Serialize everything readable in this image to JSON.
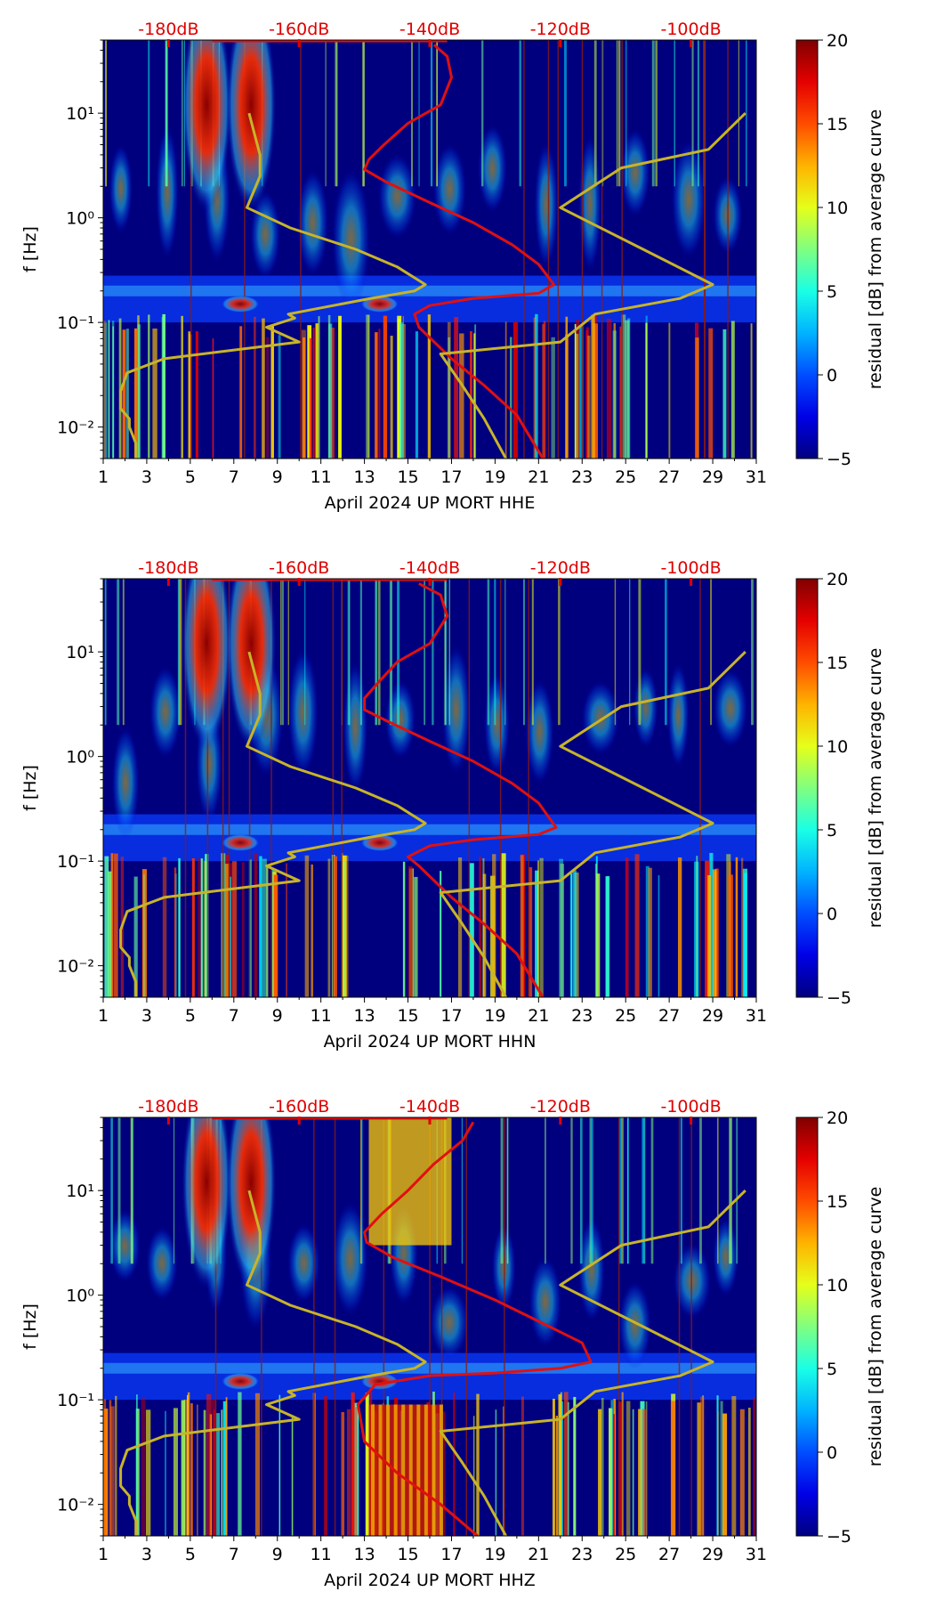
{
  "colors": {
    "background": "#00007f",
    "psd_curve": "#e01010",
    "reference_curve": "#c8b428",
    "db_scale": "#e00000",
    "colormap": "jet"
  },
  "chart_data": [
    {
      "type": "heatmap",
      "xlabel": "April 2024 UP MORT  HHE",
      "ylabel": "f [Hz]",
      "x_ticks": [
        "1",
        "3",
        "5",
        "7",
        "9",
        "11",
        "13",
        "15",
        "17",
        "19",
        "21",
        "23",
        "25",
        "27",
        "29",
        "31"
      ],
      "xlim": [
        1,
        31
      ],
      "ylim": [
        0.005,
        50
      ],
      "yscale": "log",
      "y_ticks": [
        {
          "value": 0.01,
          "label": "10⁻²"
        },
        {
          "value": 0.1,
          "label": "10⁻¹"
        },
        {
          "value": 1,
          "label": "10⁰"
        },
        {
          "value": 10,
          "label": "10¹"
        }
      ],
      "top_db_labels": [
        "-180dB",
        "-160dB",
        "-140dB",
        "-120dB",
        "-100dB"
      ],
      "top_db_positions_day": [
        4,
        10,
        16,
        22,
        28
      ],
      "colorbar": {
        "label": "residual [dB] from average curve",
        "range": [
          -5,
          20
        ],
        "ticks": [
          "−5",
          "0",
          "5",
          "10",
          "15",
          "20"
        ]
      },
      "series": [
        {
          "name": "",
          "kind": "psd",
          "x": [
            16.2,
            16.8,
            17.0,
            16.5,
            15.0,
            13.9,
            13.2,
            13.0,
            14.0,
            16.0,
            18.0,
            19.8,
            21.0,
            21.7,
            21.0,
            18.0,
            16.0,
            15.3,
            15.5,
            17.0,
            18.5,
            20.0,
            21.2
          ],
          "y": [
            45,
            35,
            22,
            12,
            8,
            5,
            3.6,
            2.9,
            2.2,
            1.4,
            0.9,
            0.55,
            0.36,
            0.23,
            0.19,
            0.17,
            0.145,
            0.12,
            0.09,
            0.045,
            0.025,
            0.013,
            0.005
          ]
        },
        {
          "name": "",
          "kind": "reference",
          "x": [
            7.7,
            8.2,
            8.2,
            7.6,
            9.6,
            12.6,
            14.5,
            15.8,
            15.3,
            13.3,
            9.5,
            9.8,
            8.5,
            10.0,
            3.8,
            2.1,
            1.8,
            1.8,
            2.2,
            2.2,
            2.5,
            2.5
          ],
          "y": [
            10,
            4,
            2.5,
            1.25,
            0.8,
            0.5,
            0.34,
            0.23,
            0.2,
            0.17,
            0.12,
            0.11,
            0.09,
            0.065,
            0.045,
            0.033,
            0.022,
            0.015,
            0.012,
            0.01,
            0.007,
            0.005
          ]
        },
        {
          "name": "",
          "kind": "reference",
          "x": [
            30.5,
            28.8,
            24.8,
            22.0,
            25.8,
            29.0,
            27.5,
            23.6,
            22.0,
            16.5,
            17.5,
            18.5,
            19.5
          ],
          "y": [
            10,
            4.5,
            3.0,
            1.25,
            0.5,
            0.23,
            0.17,
            0.12,
            0.065,
            0.05,
            0.025,
            0.012,
            0.005
          ]
        }
      ]
    },
    {
      "type": "heatmap",
      "xlabel": "April 2024 UP MORT  HHN",
      "ylabel": "f [Hz]",
      "x_ticks": [
        "1",
        "3",
        "5",
        "7",
        "9",
        "11",
        "13",
        "15",
        "17",
        "19",
        "21",
        "23",
        "25",
        "27",
        "29",
        "31"
      ],
      "xlim": [
        1,
        31
      ],
      "ylim": [
        0.005,
        50
      ],
      "yscale": "log",
      "y_ticks": [
        {
          "value": 0.01,
          "label": "10⁻²"
        },
        {
          "value": 0.1,
          "label": "10⁻¹"
        },
        {
          "value": 1,
          "label": "10⁰"
        },
        {
          "value": 10,
          "label": "10¹"
        }
      ],
      "top_db_labels": [
        "-180dB",
        "-160dB",
        "-140dB",
        "-120dB",
        "-100dB"
      ],
      "top_db_positions_day": [
        4,
        10,
        16,
        22,
        28
      ],
      "colorbar": {
        "label": "residual [dB] from average curve",
        "range": [
          -5,
          20
        ],
        "ticks": [
          "−5",
          "0",
          "5",
          "10",
          "15",
          "20"
        ]
      },
      "series": [
        {
          "name": "",
          "kind": "psd",
          "x": [
            15.5,
            16.5,
            16.8,
            16.0,
            14.5,
            13.6,
            13.0,
            13.0,
            14.0,
            16.0,
            18.0,
            19.8,
            21.0,
            21.8,
            21.0,
            18.0,
            16.0,
            15.0,
            15.5,
            17.0,
            18.5,
            20.0,
            21.2
          ],
          "y": [
            45,
            35,
            22,
            12,
            8,
            5,
            3.6,
            2.8,
            2.2,
            1.4,
            0.9,
            0.55,
            0.36,
            0.21,
            0.18,
            0.16,
            0.14,
            0.11,
            0.09,
            0.045,
            0.025,
            0.013,
            0.005
          ]
        },
        {
          "name": "",
          "kind": "reference",
          "x": [
            7.7,
            8.2,
            8.2,
            7.6,
            9.6,
            12.6,
            14.5,
            15.8,
            15.3,
            13.3,
            9.5,
            9.8,
            8.5,
            10.0,
            3.8,
            2.1,
            1.8,
            1.8,
            2.2,
            2.2,
            2.5,
            2.5
          ],
          "y": [
            10,
            4,
            2.5,
            1.25,
            0.8,
            0.5,
            0.34,
            0.23,
            0.2,
            0.17,
            0.12,
            0.11,
            0.09,
            0.065,
            0.045,
            0.033,
            0.022,
            0.015,
            0.012,
            0.01,
            0.007,
            0.005
          ]
        },
        {
          "name": "",
          "kind": "reference",
          "x": [
            30.5,
            28.8,
            24.8,
            22.0,
            25.8,
            29.0,
            27.5,
            23.6,
            22.0,
            16.5,
            17.5,
            18.5,
            19.5
          ],
          "y": [
            10,
            4.5,
            3.0,
            1.25,
            0.5,
            0.23,
            0.17,
            0.12,
            0.065,
            0.05,
            0.025,
            0.012,
            0.005
          ]
        }
      ]
    },
    {
      "type": "heatmap",
      "xlabel": "April 2024 UP MORT  HHZ",
      "ylabel": "f [Hz]",
      "x_ticks": [
        "1",
        "3",
        "5",
        "7",
        "9",
        "11",
        "13",
        "15",
        "17",
        "19",
        "21",
        "23",
        "25",
        "27",
        "29",
        "31"
      ],
      "xlim": [
        1,
        31
      ],
      "ylim": [
        0.005,
        50
      ],
      "yscale": "log",
      "y_ticks": [
        {
          "value": 0.01,
          "label": "10⁻²"
        },
        {
          "value": 0.1,
          "label": "10⁻¹"
        },
        {
          "value": 1,
          "label": "10⁰"
        },
        {
          "value": 10,
          "label": "10¹"
        }
      ],
      "top_db_labels": [
        "-180dB",
        "-160dB",
        "-140dB",
        "-120dB",
        "-100dB"
      ],
      "top_db_positions_day": [
        4,
        10,
        16,
        22,
        28
      ],
      "colorbar": {
        "label": "residual [dB] from average curve",
        "range": [
          -5,
          20
        ],
        "ticks": [
          "−5",
          "0",
          "5",
          "10",
          "15",
          "20"
        ]
      },
      "series": [
        {
          "name": "",
          "kind": "psd",
          "x": [
            18.0,
            17.5,
            16.2,
            15.0,
            13.8,
            13.0,
            13.1,
            14.3,
            16.5,
            19.0,
            21.5,
            23.0,
            23.4,
            22.0,
            19.0,
            16.0,
            13.5,
            12.7,
            13.0,
            14.5,
            16.5,
            18.2
          ],
          "y": [
            45,
            30,
            18,
            10,
            6,
            4,
            3.2,
            2.3,
            1.5,
            0.9,
            0.5,
            0.35,
            0.23,
            0.2,
            0.18,
            0.17,
            0.14,
            0.09,
            0.04,
            0.02,
            0.01,
            0.005
          ]
        },
        {
          "name": "",
          "kind": "reference",
          "x": [
            7.7,
            8.2,
            8.2,
            7.6,
            9.6,
            12.6,
            14.5,
            15.8,
            15.3,
            13.3,
            9.5,
            9.8,
            8.5,
            10.0,
            3.8,
            2.1,
            1.8,
            1.8,
            2.2,
            2.2,
            2.5,
            2.5
          ],
          "y": [
            10,
            4,
            2.5,
            1.25,
            0.8,
            0.5,
            0.34,
            0.23,
            0.2,
            0.17,
            0.12,
            0.11,
            0.09,
            0.065,
            0.045,
            0.033,
            0.022,
            0.015,
            0.012,
            0.01,
            0.007,
            0.005
          ]
        },
        {
          "name": "",
          "kind": "reference",
          "x": [
            30.5,
            28.8,
            24.8,
            22.0,
            25.8,
            29.0,
            27.5,
            23.6,
            22.0,
            16.5,
            17.5,
            18.5,
            19.5
          ],
          "y": [
            10,
            4.5,
            3.0,
            1.25,
            0.5,
            0.23,
            0.17,
            0.12,
            0.065,
            0.05,
            0.025,
            0.012,
            0.005
          ]
        }
      ]
    }
  ]
}
